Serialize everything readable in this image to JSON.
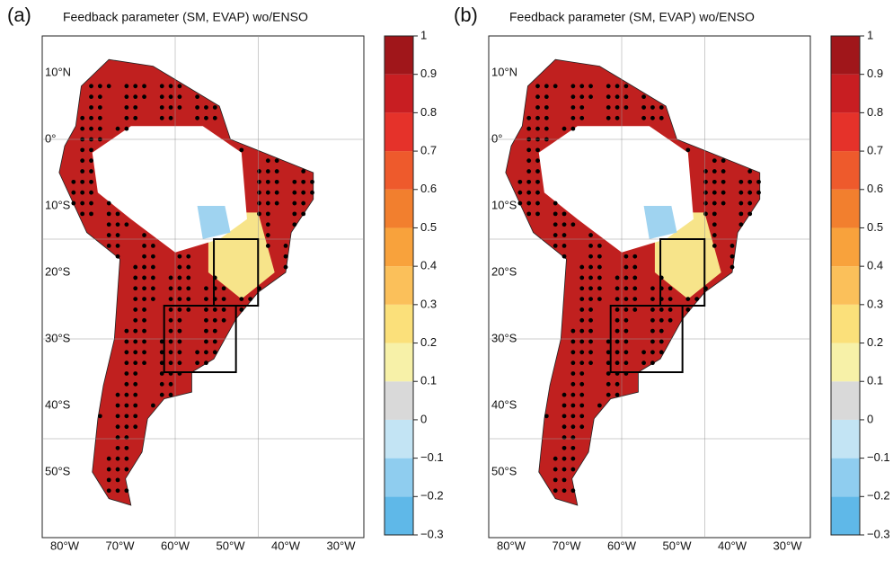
{
  "panels": [
    {
      "label": "(a)",
      "title": "Feedback parameter (SM, EVAP) wo/ENSO",
      "lat_labels": [
        "10°N",
        "0°",
        "10°S",
        "20°S",
        "30°S",
        "40°S",
        "50°S"
      ],
      "lon_labels": [
        "80°W",
        "70°W",
        "60°W",
        "50°W",
        "40°W",
        "30°W"
      ]
    },
    {
      "label": "(b)",
      "title": "Feedback parameter (SM, EVAP) wo/ENSO",
      "lat_labels": [
        "10°N",
        "0°",
        "10°S",
        "20°S",
        "30°S",
        "40°S",
        "50°S"
      ],
      "lon_labels": [
        "80°W",
        "70°W",
        "60°W",
        "50°W",
        "40°W",
        "30°W"
      ]
    }
  ],
  "colorbar": {
    "lim": [
      -0.3,
      1
    ],
    "ticks": [
      {
        "value": -0.3,
        "label": "−0.3"
      },
      {
        "value": -0.2,
        "label": "−0.2"
      },
      {
        "value": -0.1,
        "label": "−0.1"
      },
      0,
      0.1,
      0.2,
      0.3,
      0.4,
      0.5,
      0.6,
      0.7,
      0.8,
      0.9,
      1
    ],
    "colors": [
      "#5fb8e8",
      "#8fcdef",
      "#c3e4f4",
      "#d9d9d9",
      "#f7f1a8",
      "#fbe07a",
      "#fbc05a",
      "#f8a23c",
      "#f27f2e",
      "#ee5a2c",
      "#e5322a",
      "#c81e22",
      "#a0161a"
    ]
  }
}
